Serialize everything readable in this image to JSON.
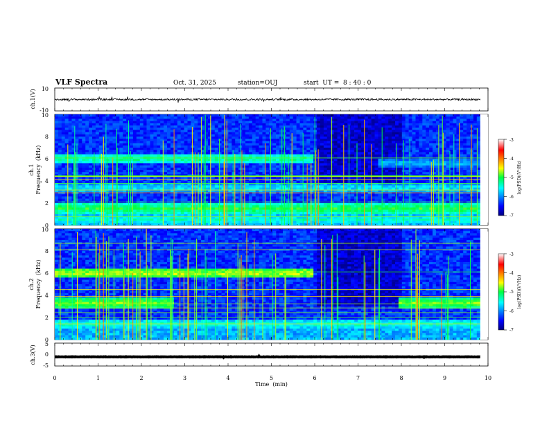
{
  "header": {
    "title": "VLF Spectra",
    "date": "Oct. 31, 2025",
    "station": "station=OUJ",
    "start_time": "start  UT =  8 : 40 : 0"
  },
  "chart_data": {
    "type": "spectrogram",
    "title": "VLF Spectra",
    "xlabel": "Time  (min)",
    "xlim": [
      0,
      10
    ],
    "x_ticks": [
      "0",
      "1",
      "2",
      "3",
      "4",
      "5",
      "6",
      "7",
      "8",
      "9",
      "10"
    ],
    "data_end_min": 9.82,
    "panels": [
      {
        "id": "ch1-waveform",
        "type": "line",
        "ylabel": "ch.1(V)",
        "ylim": [
          -10,
          10
        ],
        "y_ticks": [
          "10",
          "-10"
        ],
        "baseline": 0,
        "noise_amplitude": 1.5
      },
      {
        "id": "ch1-spectrogram",
        "type": "heatmap",
        "ylabel_channel": "ch.1",
        "ylabel": "Frequency  (kHz)",
        "ylim": [
          0,
          10
        ],
        "y_ticks": [
          "0",
          "2",
          "4",
          "6",
          "8",
          "10"
        ],
        "emission_bands_khz": [
          {
            "freq": 6.0,
            "t_start": 0,
            "t_end": 6.0,
            "level": -5.2
          },
          {
            "freq": 5.6,
            "t_start": 7.5,
            "t_end": 9.8,
            "level": -5.8
          },
          {
            "freq": 1.5,
            "t_start": 0,
            "t_end": 9.8,
            "level": -5.0
          },
          {
            "freq": 3.4,
            "t_start": 0,
            "t_end": 9.8,
            "level": -5.6
          },
          {
            "freq": 0.5,
            "t_start": 0,
            "t_end": 9.8,
            "level": -5.4
          }
        ],
        "colorbar": {
          "label": "log(PSD)(V²/Hz)",
          "ticks": [
            "-3",
            "-4",
            "-5",
            "-6",
            "-7"
          ],
          "range": [
            -7,
            -3
          ]
        }
      },
      {
        "id": "ch2-spectrogram",
        "type": "heatmap",
        "ylabel_channel": "ch.2",
        "ylabel": "Frequency  (kHz)",
        "ylim": [
          0,
          10
        ],
        "y_ticks": [
          "0",
          "2",
          "4",
          "6",
          "8",
          "10"
        ],
        "emission_bands_khz": [
          {
            "freq": 6.0,
            "t_start": 0,
            "t_end": 6.0,
            "level": -4.6
          },
          {
            "freq": 3.3,
            "t_start": 0,
            "t_end": 2.75,
            "level": -4.8
          },
          {
            "freq": 3.3,
            "t_start": 7.9,
            "t_end": 9.8,
            "level": -4.8
          },
          {
            "freq": 1.4,
            "t_start": 0,
            "t_end": 9.8,
            "level": -5.4
          }
        ],
        "colorbar": {
          "label": "log(PSD)(V²/Hz)",
          "ticks": [
            "-3",
            "-4",
            "-5",
            "-6",
            "-7"
          ],
          "range": [
            -7,
            -3
          ]
        }
      },
      {
        "id": "ch3-waveform",
        "type": "line",
        "ylabel": "ch.3(V)",
        "ylim": [
          -5,
          5
        ],
        "y_ticks": [
          "5",
          "0",
          "-5"
        ],
        "baseline": -1,
        "noise_amplitude": 0.15
      }
    ]
  }
}
